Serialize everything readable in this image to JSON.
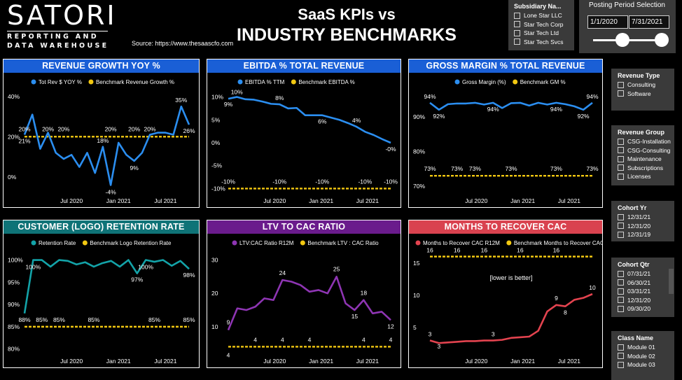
{
  "header": {
    "logo_main": "SATORI",
    "logo_sub_line1": "REPORTING AND",
    "logo_sub_line2": "DATA WAREHOUSE",
    "source": "Source: https://www.thesaascfo.com",
    "title_line1": "SaaS KPIs vs",
    "title_line2": "INDUSTRY BENCHMARKS"
  },
  "subsidiary_slicer": {
    "title": "Subsidiary Na...",
    "items": [
      "Lone Star LLC",
      "Star Tech Corp",
      "Star Tech Ltd",
      "Star Tech Svcs"
    ]
  },
  "posting_period": {
    "title": "Posting Period Selection",
    "start": "1/1/2020",
    "end": "7/31/2021"
  },
  "revenue_type_slicer": {
    "title": "Revenue Type",
    "items": [
      "Consulting",
      "Software"
    ]
  },
  "revenue_group_slicer": {
    "title": "Revenue Group",
    "items": [
      "CSG-Installation",
      "CSG-Consulting",
      "Maintenance",
      "Subscriptions",
      "Licenses"
    ]
  },
  "cohort_yr_slicer": {
    "title": "Cohort Yr",
    "items": [
      "12/31/21",
      "12/31/20",
      "12/31/19"
    ]
  },
  "cohort_qtr_slicer": {
    "title": "Cohort Qtr",
    "items": [
      "07/31/21",
      "06/30/21",
      "03/31/21",
      "12/31/20",
      "09/30/20"
    ]
  },
  "class_name_slicer": {
    "title": "Class Name",
    "items": [
      "Module 01",
      "Module 02",
      "Module 03"
    ]
  },
  "colors": {
    "blue_header": "#1a5fd6",
    "teal_header": "#0f7377",
    "purple_header": "#6a1b8c",
    "red_header": "#d9424f",
    "benchmark": "#f2c811",
    "blue_line": "#2b8ef0",
    "teal_line": "#13a3a8",
    "purple_line": "#8e35b3",
    "red_line": "#e3434f"
  },
  "chart_data": [
    {
      "id": "revgrowth",
      "type": "line",
      "title": "REVENUE GROWTH YOY %",
      "color_key": "blue",
      "ylim": [
        -8,
        42
      ],
      "yticks": [
        "40%",
        "20%",
        "0%"
      ],
      "ytick_values": [
        40,
        20,
        0
      ],
      "xticks": [
        "Jul 2020",
        "Jan 2021",
        "Jul 2021"
      ],
      "xtick_positions": [
        6,
        12,
        18
      ],
      "series": [
        {
          "name": "Tot Rev $ YOY %",
          "values": [
            21,
            31,
            14,
            22,
            12,
            9,
            11,
            5,
            12,
            2,
            15,
            -4,
            17,
            11,
            8,
            12,
            21,
            22,
            22,
            21,
            35,
            26
          ]
        },
        {
          "name": "Benchmark Revenue Growth %",
          "values": [
            20,
            20,
            20,
            20,
            20,
            20,
            20,
            20,
            20,
            20,
            20,
            20,
            20,
            20,
            20,
            20,
            20,
            20,
            20,
            20,
            20,
            20
          ]
        }
      ],
      "data_labels": [
        "20%",
        "21%",
        "20%",
        "20%",
        "18%",
        "20%",
        "9%",
        "20%",
        "-4%",
        "20%",
        "35%",
        "26%"
      ]
    },
    {
      "id": "ebitda",
      "type": "line",
      "title": "EBITDA % TOTAL REVENUE",
      "color_key": "blue",
      "ylim": [
        -11,
        11
      ],
      "yticks": [
        "10%",
        "5%",
        "0%",
        "-5%",
        "-10%"
      ],
      "ytick_values": [
        10,
        5,
        0,
        -5,
        -10
      ],
      "xticks": [
        "Jul 2020",
        "Jan 2021",
        "Jul 2021"
      ],
      "xtick_positions": [
        6,
        12,
        18
      ],
      "series": [
        {
          "name": "EBITDA % TTM",
          "values": [
            9.6,
            10,
            9.5,
            9.4,
            9,
            8.5,
            8.4,
            7.5,
            7.6,
            6,
            6,
            6,
            5.5,
            5,
            4.3,
            3.5,
            2.4,
            1.7,
            0.8,
            0
          ]
        },
        {
          "name": "Benchmark EBITDA %",
          "values": [
            -10,
            -10,
            -10,
            -10,
            -10,
            -10,
            -10,
            -10,
            -10,
            -10,
            -10,
            -10,
            -10,
            -10,
            -10,
            -10,
            -10,
            -10,
            -10,
            -10
          ]
        }
      ],
      "data_labels": [
        "10%",
        "9%",
        "8%",
        "6%",
        "4%",
        "-0%",
        "-10%",
        "-10%",
        "-10%",
        "-10%",
        "-10%"
      ]
    },
    {
      "id": "grossmargin",
      "type": "line",
      "title": "GROSS MARGIN % TOTAL REVENUE",
      "color_key": "blue",
      "ylim": [
        68,
        97
      ],
      "yticks": [
        "90%",
        "80%",
        "70%"
      ],
      "ytick_values": [
        90,
        80,
        70
      ],
      "xticks": [
        "Jul 2020",
        "Jan 2021",
        "Jul 2021"
      ],
      "xtick_positions": [
        6,
        12,
        18
      ],
      "series": [
        {
          "name": "Gross Margin (%)",
          "values": [
            94,
            92,
            93.6,
            93.8,
            93.8,
            94,
            93.5,
            94,
            92.5,
            93.9,
            94,
            93.2,
            94,
            93.5,
            94,
            93.6,
            93,
            92,
            94
          ]
        },
        {
          "name": "Benchmark GM %",
          "values": [
            73,
            73,
            73,
            73,
            73,
            73,
            73,
            73,
            73,
            73,
            73,
            73,
            73,
            73,
            73,
            73,
            73,
            73,
            73
          ]
        }
      ],
      "data_labels": [
        "94%",
        "92%",
        "94%",
        "94%",
        "92%",
        "94%",
        "73%",
        "73%",
        "73%",
        "73%",
        "73%",
        "73%"
      ]
    },
    {
      "id": "retention",
      "type": "line",
      "title": "CUSTOMER (LOGO) RETENTION RATE",
      "color_key": "teal",
      "ylim": [
        79,
        101.5
      ],
      "yticks": [
        "100%",
        "95%",
        "90%",
        "85%",
        "80%"
      ],
      "ytick_values": [
        100,
        95,
        90,
        85,
        80
      ],
      "xticks": [
        "Jul 2020",
        "Jan 2021",
        "Jul 2021"
      ],
      "xtick_positions": [
        6,
        12,
        18
      ],
      "series": [
        {
          "name": "Retention Rate",
          "values": [
            88,
            100,
            100,
            98.5,
            100,
            99.8,
            99,
            99.5,
            98.5,
            99.3,
            99.8,
            98.5,
            100,
            97,
            100,
            99.6,
            100,
            98.7,
            99.8,
            98
          ]
        },
        {
          "name": "Benchmark Logo Retention Rate",
          "values": [
            85,
            85,
            85,
            85,
            85,
            85,
            85,
            85,
            85,
            85,
            85,
            85,
            85,
            85,
            85,
            85,
            85,
            85,
            85,
            85
          ]
        }
      ],
      "data_labels": [
        "88%",
        "100%",
        "85%",
        "85%",
        "85%",
        "97%",
        "100%",
        "85%",
        "98%",
        "85%"
      ]
    },
    {
      "id": "ltvcac",
      "type": "line",
      "title": "LTV TO CAC RATIO",
      "color_key": "purple",
      "ylim": [
        2,
        32
      ],
      "yticks": [
        "30",
        "20",
        "10"
      ],
      "ytick_values": [
        30,
        20,
        10
      ],
      "xticks": [
        "Jul 2020",
        "Jan 2021",
        "Jul 2021"
      ],
      "xtick_positions": [
        6,
        12,
        18
      ],
      "series": [
        {
          "name": "LTV:CAC Ratio R12M",
          "values": [
            9,
            15.5,
            15,
            16,
            18.5,
            18,
            24,
            23.5,
            22.5,
            20.5,
            21,
            20,
            25,
            17,
            15,
            18,
            14,
            14.5,
            12
          ]
        },
        {
          "name": "Benchmark LTV : CAC Ratio",
          "values": [
            4,
            4,
            4,
            4,
            4,
            4,
            4,
            4,
            4,
            4,
            4,
            4,
            4,
            4,
            4,
            4,
            4,
            4,
            4
          ]
        }
      ],
      "data_labels": [
        "9",
        "4",
        "4",
        "4",
        "24",
        "25",
        "18",
        "15",
        "4",
        "12",
        "4",
        "4"
      ]
    },
    {
      "id": "cacmonths",
      "type": "line",
      "title": "MONTHS TO RECOVER CAC",
      "color_key": "red",
      "annotation": "[lower is better]",
      "ylim": [
        1,
        16.5
      ],
      "yticks": [
        "15",
        "10",
        "5"
      ],
      "ytick_values": [
        15,
        10,
        5
      ],
      "xticks": [
        "Jul 2020",
        "Jan 2021",
        "Jul 2021"
      ],
      "xtick_positions": [
        6,
        12,
        18
      ],
      "series": [
        {
          "name": "Months to Recover CAC R12M",
          "values": [
            3,
            2.6,
            2.7,
            2.8,
            2.9,
            2.9,
            3,
            3,
            3.1,
            3.4,
            3.5,
            3.6,
            4.5,
            7.5,
            8.5,
            8.3,
            9.3,
            9.6,
            10.2
          ]
        },
        {
          "name": "Benchmark Months to Recover CAC",
          "values": [
            16,
            16,
            16,
            16,
            16,
            16,
            16,
            16,
            16,
            16,
            16,
            16,
            16,
            16,
            16,
            16,
            16,
            16,
            16
          ]
        }
      ],
      "data_labels": [
        "3",
        "3",
        "16",
        "16",
        "16",
        "3",
        "16",
        "16",
        "9",
        "8",
        "10"
      ]
    }
  ]
}
